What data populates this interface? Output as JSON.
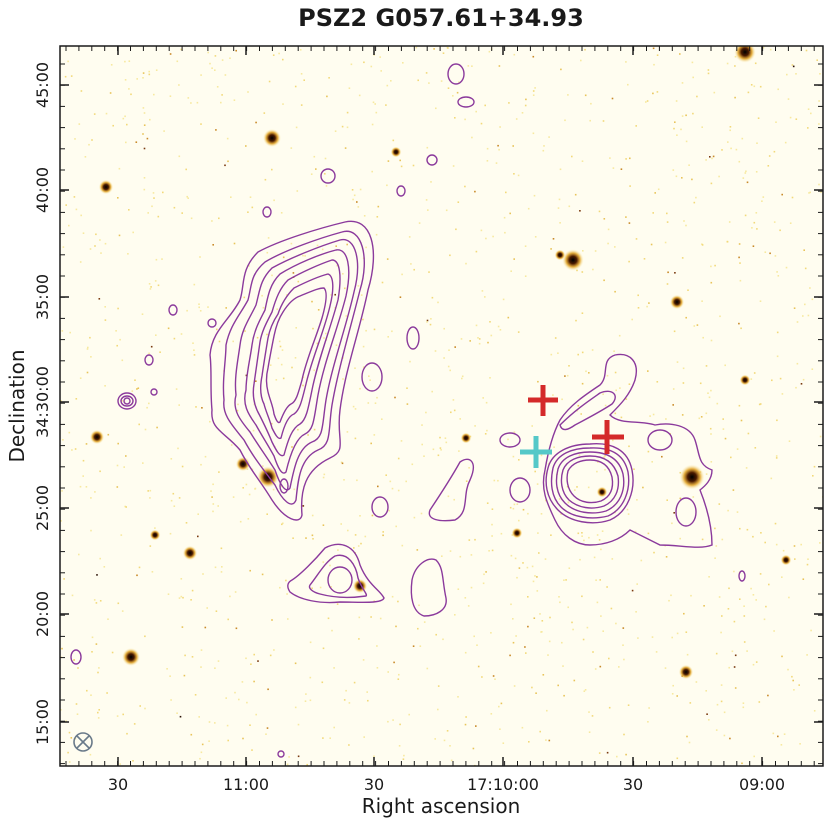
{
  "chart_data": {
    "type": "image_contour",
    "title": "PSZ2 G057.61+34.93",
    "xlabel": "Right ascension",
    "ylabel": "Declination",
    "x_ticks": [
      "30",
      "11:00",
      "30",
      "17:10:00",
      "30",
      "09:00"
    ],
    "y_ticks": [
      "15:00",
      "20:00",
      "25:00",
      "34:30:00",
      "35:00",
      "40:00",
      "45:00"
    ],
    "contour_color": "#8b3a9c",
    "background_colormap": "inferno_r",
    "markers": [
      {
        "kind": "cross",
        "color": "#d42a2a"
      },
      {
        "kind": "cross",
        "color": "#d42a2a"
      },
      {
        "kind": "cross",
        "color": "#55c8c8"
      }
    ],
    "beam_symbol": "circle-x"
  }
}
